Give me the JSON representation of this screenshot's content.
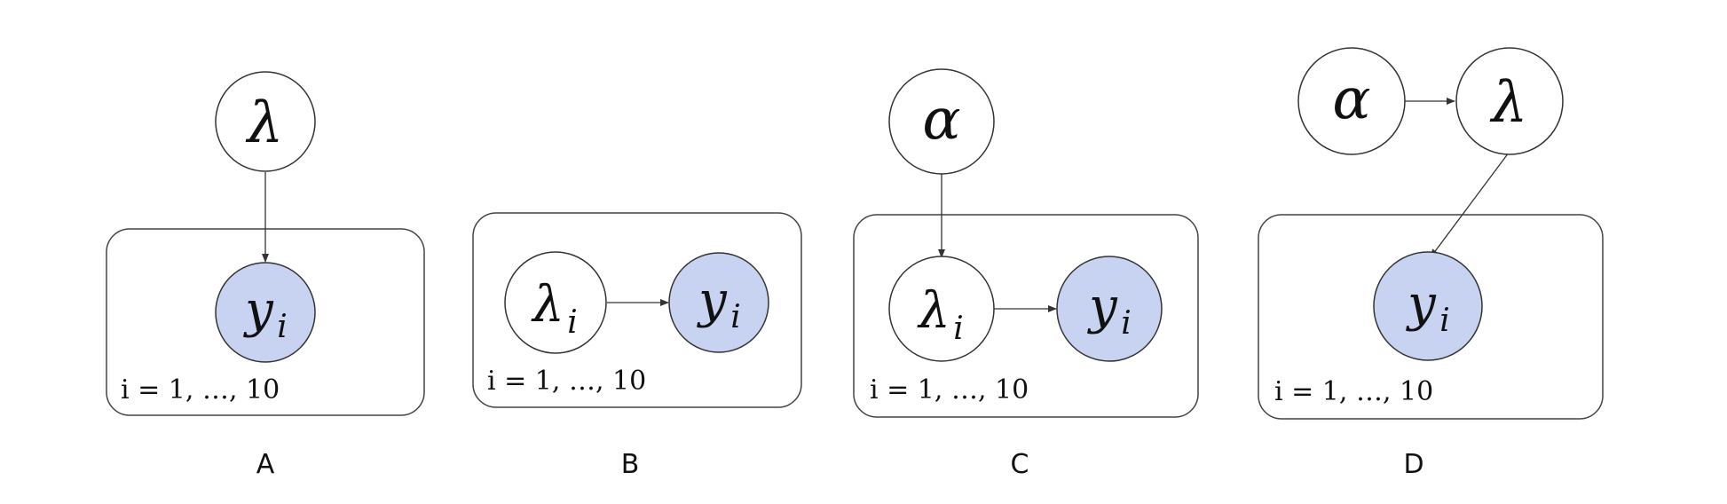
{
  "panels": [
    {
      "label": "A",
      "plate_label": "i = 1, …, 10",
      "nodes": [
        {
          "symbol": "λ",
          "subscript": "",
          "observed": false
        },
        {
          "symbol": "y",
          "subscript": "i",
          "observed": true
        }
      ]
    },
    {
      "label": "B",
      "plate_label": "i = 1, …, 10",
      "nodes": [
        {
          "symbol": "λ",
          "subscript": "i",
          "observed": false
        },
        {
          "symbol": "y",
          "subscript": "i",
          "observed": true
        }
      ]
    },
    {
      "label": "C",
      "plate_label": "i = 1, …, 10",
      "nodes": [
        {
          "symbol": "α",
          "subscript": "",
          "observed": false
        },
        {
          "symbol": "λ",
          "subscript": "i",
          "observed": false
        },
        {
          "symbol": "y",
          "subscript": "i",
          "observed": true
        }
      ]
    },
    {
      "label": "D",
      "plate_label": "i = 1, …, 10",
      "nodes": [
        {
          "symbol": "α",
          "subscript": "",
          "observed": false
        },
        {
          "symbol": "λ",
          "subscript": "",
          "observed": false
        },
        {
          "symbol": "y",
          "subscript": "i",
          "observed": true
        }
      ]
    }
  ],
  "colors": {
    "observed_fill": "#c7d3f0",
    "latent_fill": "#ffffff",
    "stroke": "#333333"
  }
}
